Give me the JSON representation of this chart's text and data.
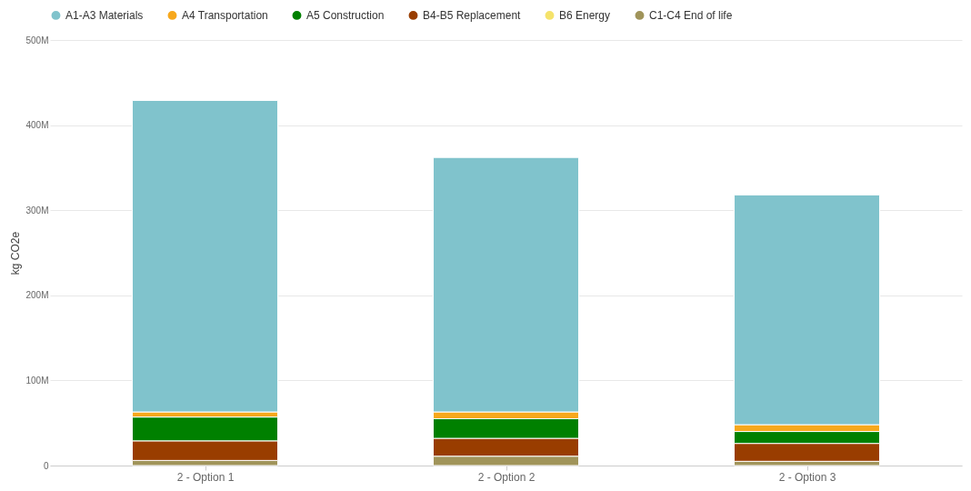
{
  "chart_data": {
    "type": "bar",
    "stacked": true,
    "ylabel": "kg CO2e",
    "categories": [
      "2 - Option 1",
      "2 - Option 2",
      "2 - Option 3"
    ],
    "series": [
      {
        "name": "C1-C4 End of life",
        "color": "#a0945a",
        "values": [
          6,
          11,
          5
        ]
      },
      {
        "name": "B6 Energy",
        "color": "#f5e36b",
        "values": [
          null,
          null,
          null
        ]
      },
      {
        "name": "B4-B5 Replacement",
        "color": "#993d00",
        "values": [
          23,
          21,
          21
        ]
      },
      {
        "name": "A5 Construction",
        "color": "#008000",
        "values": [
          28,
          23,
          14
        ]
      },
      {
        "name": "A4 Transportation",
        "color": "#f7a81c",
        "values": [
          6,
          8,
          8
        ]
      },
      {
        "name": "A1-A3 Materials",
        "color": "#80c3cc",
        "values": [
          366,
          299,
          270
        ]
      }
    ],
    "ylim": [
      0,
      500
    ],
    "yticks": [
      0,
      {
        "value": 100,
        "label": "100M"
      },
      {
        "value": 200,
        "label": "200M"
      },
      {
        "value": 300,
        "label": "300M"
      },
      {
        "value": 400,
        "label": "400M"
      },
      {
        "value": 500,
        "label": "500M"
      }
    ],
    "grid": "y",
    "legend": "top"
  }
}
